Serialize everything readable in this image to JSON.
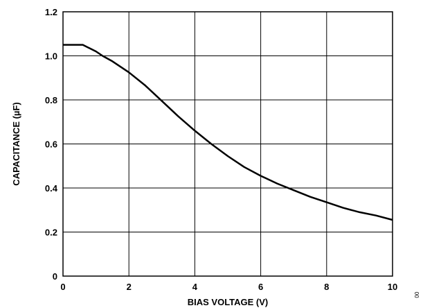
{
  "chart_data": {
    "type": "line",
    "title": "",
    "xlabel": "BIAS VOLTAGE (V)",
    "ylabel": "CAPACITANCE (µF)",
    "xlim": [
      0,
      10
    ],
    "ylim": [
      0,
      1.2
    ],
    "grid": true,
    "x_ticks": [
      0,
      2,
      4,
      6,
      8,
      10
    ],
    "x_tick_labels": [
      "0",
      "2",
      "4",
      "6",
      "8",
      "10"
    ],
    "y_ticks": [
      0,
      0.2,
      0.4,
      0.6,
      0.8,
      1.0,
      1.2
    ],
    "y_tick_labels": [
      "0",
      "0.2",
      "0.4",
      "0.6",
      "0.8",
      "1.0",
      "1.2"
    ],
    "series": [
      {
        "x": [
          0,
          0.2,
          0.4,
          0.6,
          0.8,
          1.0,
          1.2,
          1.5,
          2.0,
          2.5,
          3.0,
          3.5,
          4.0,
          4.5,
          5.0,
          5.5,
          6.0,
          6.5,
          7.0,
          7.5,
          8.0,
          8.5,
          9.0,
          9.5,
          10.0
        ],
        "values": [
          1.05,
          1.05,
          1.05,
          1.05,
          1.035,
          1.02,
          1.0,
          0.975,
          0.925,
          0.865,
          0.795,
          0.725,
          0.66,
          0.6,
          0.545,
          0.495,
          0.455,
          0.42,
          0.39,
          0.36,
          0.335,
          0.31,
          0.29,
          0.275,
          0.255
        ],
        "color": "#000000"
      }
    ]
  },
  "side_mark": "00"
}
